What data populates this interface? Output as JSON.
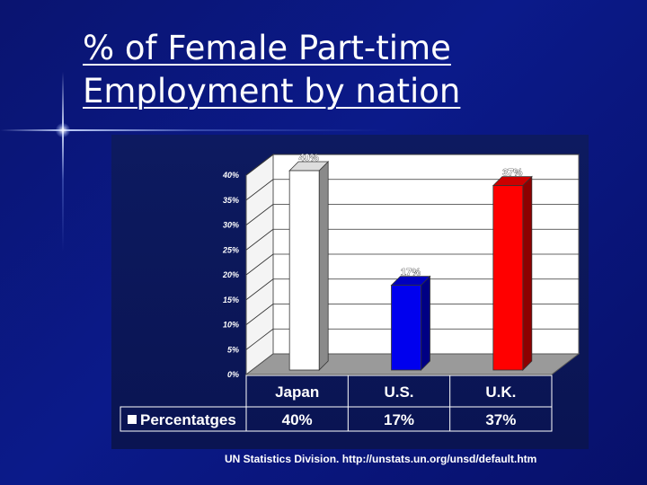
{
  "slide": {
    "title_line1": "% of Female Part-time",
    "title_line2": "Employment by nation",
    "source": "UN Statistics Division. http://unstats.un.org/unsd/default.htm"
  },
  "chart_data": {
    "type": "bar",
    "categories": [
      "Japan",
      "U.S.",
      "U.K."
    ],
    "series": [
      {
        "name": "Percentatges",
        "values": [
          40,
          17,
          37
        ]
      }
    ],
    "data_labels": [
      "40%",
      "17%",
      "37%"
    ],
    "y_ticks": [
      "0%",
      "5%",
      "10%",
      "15%",
      "20%",
      "25%",
      "30%",
      "35%",
      "40%"
    ],
    "ylim": [
      0,
      40
    ],
    "table_values": [
      "40%",
      "17%",
      "37%"
    ],
    "bar_colors": [
      "#ffffff",
      "#0000ee",
      "#ff0000"
    ],
    "grid": true,
    "legend": "data-table-bottom"
  }
}
